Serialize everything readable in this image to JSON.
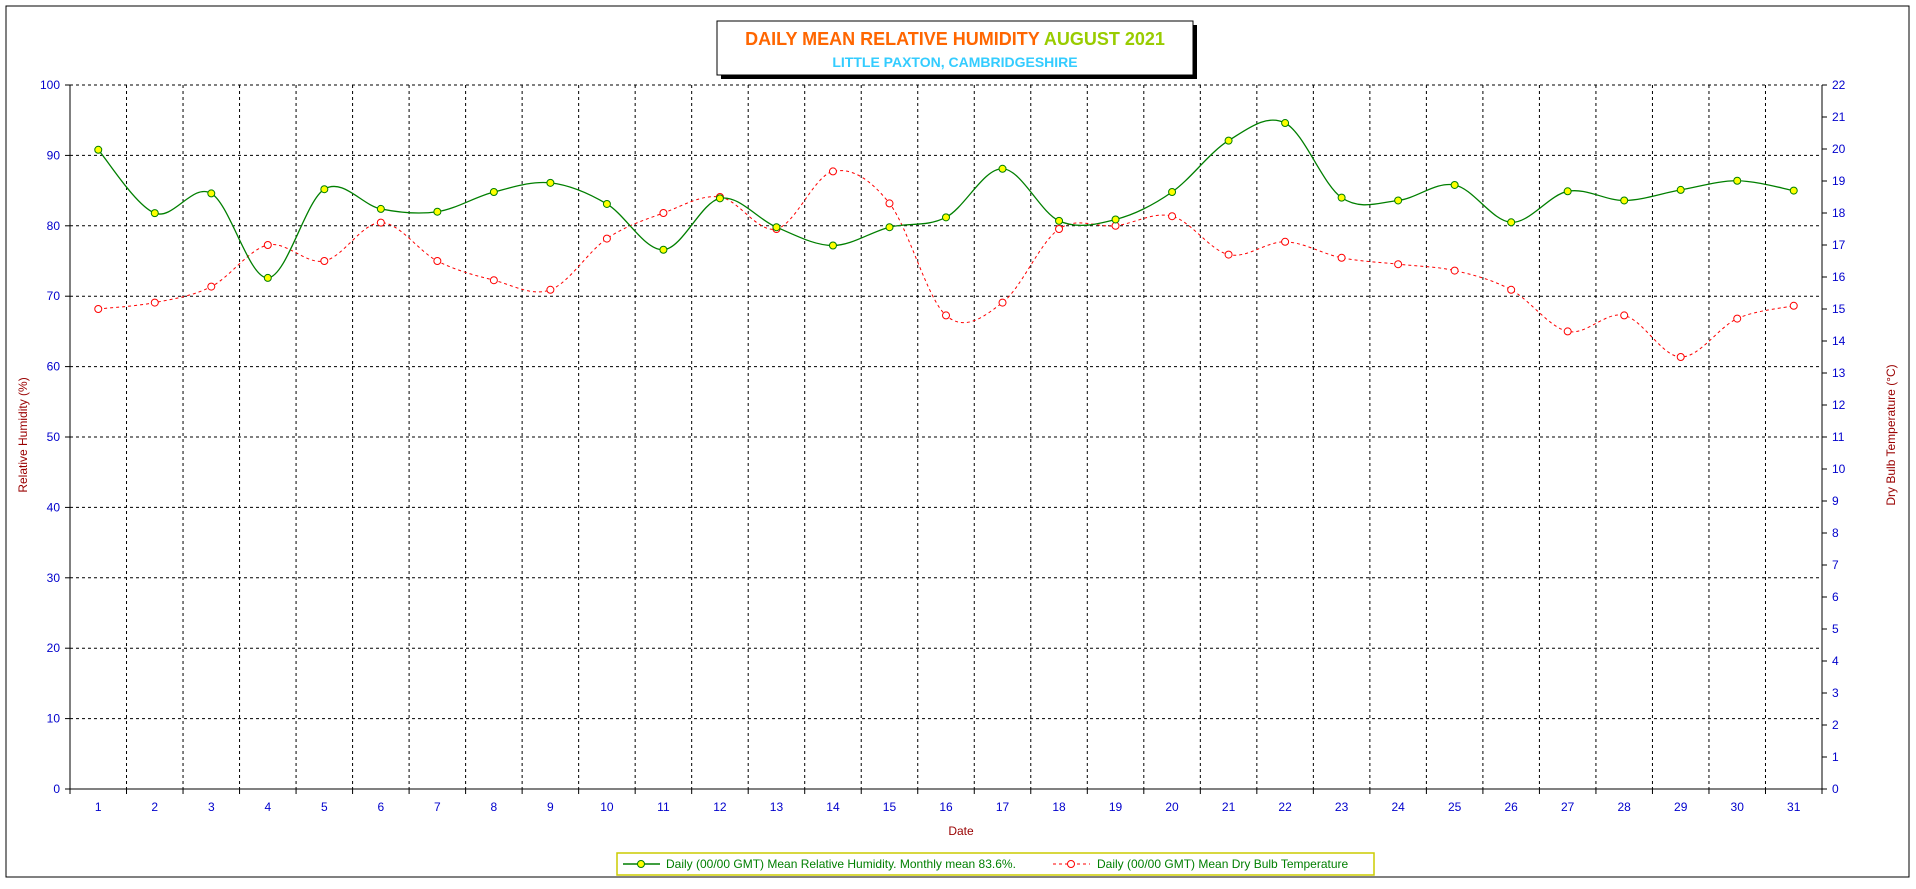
{
  "title": {
    "part1": "DAILY MEAN RELATIVE HUMIDITY",
    "part2": "AUGUST 2021",
    "subtitle": "LITTLE PAXTON, CAMBRIDGESHIRE"
  },
  "colors": {
    "title1": "#ff6600",
    "title2": "#99cc00",
    "subtitle": "#33ccff",
    "tick": "#0000cc",
    "axis_title": "#990000",
    "humidity_line": "#007f00",
    "humidity_marker": "#ffff00",
    "temperature_line": "#ff0000",
    "grid": "#000000"
  },
  "chart_data": {
    "type": "line",
    "title": "DAILY MEAN RELATIVE HUMIDITY AUGUST 2021",
    "subtitle": "LITTLE PAXTON, CAMBRIDGESHIRE",
    "xlabel": "Date",
    "ylabel": "Relative Humidity (%)",
    "y2label": "Dry Bulb Temperature (°C)",
    "x": [
      1,
      2,
      3,
      4,
      5,
      6,
      7,
      8,
      9,
      10,
      11,
      12,
      13,
      14,
      15,
      16,
      17,
      18,
      19,
      20,
      21,
      22,
      23,
      24,
      25,
      26,
      27,
      28,
      29,
      30,
      31
    ],
    "x_ticks": [
      "1",
      "2",
      "3",
      "4",
      "5",
      "6",
      "7",
      "8",
      "9",
      "10",
      "11",
      "12",
      "13",
      "14",
      "15",
      "16",
      "17",
      "18",
      "19",
      "20",
      "21",
      "22",
      "23",
      "24",
      "25",
      "26",
      "27",
      "28",
      "29",
      "30",
      "31"
    ],
    "ylim": [
      0,
      100
    ],
    "y_ticks": [
      "0",
      "10",
      "20",
      "30",
      "40",
      "50",
      "60",
      "70",
      "80",
      "90",
      "100"
    ],
    "y2lim": [
      0,
      22
    ],
    "y2_ticks": [
      "0",
      "1",
      "2",
      "3",
      "4",
      "5",
      "6",
      "7",
      "8",
      "9",
      "10",
      "11",
      "12",
      "13",
      "14",
      "15",
      "16",
      "17",
      "18",
      "19",
      "20",
      "21",
      "22"
    ],
    "grid": true,
    "legend_position": "bottom-center",
    "series": [
      {
        "name": "Daily (00/00 GMT) Mean Relative Humidity. Monthly mean 83.6%.",
        "axis": "left",
        "style": "solid",
        "values": [
          90.8,
          81.8,
          84.6,
          72.6,
          85.2,
          82.4,
          82.0,
          84.8,
          86.1,
          83.1,
          76.6,
          83.9,
          79.8,
          77.2,
          79.8,
          81.2,
          88.1,
          80.7,
          80.9,
          84.8,
          92.1,
          94.6,
          84.0,
          83.6,
          85.8,
          80.5,
          84.9,
          83.6,
          85.1,
          86.4,
          85.0
        ]
      },
      {
        "name": "Daily (00/00 GMT) Mean Dry Bulb Temperature",
        "axis": "right",
        "style": "dashed",
        "values": [
          15.0,
          15.2,
          15.7,
          17.0,
          16.5,
          17.7,
          16.5,
          15.9,
          15.6,
          17.2,
          18.0,
          18.5,
          17.5,
          19.3,
          18.3,
          14.8,
          15.2,
          17.5,
          17.6,
          17.9,
          16.7,
          17.1,
          16.6,
          16.4,
          16.2,
          15.6,
          14.3,
          14.8,
          13.5,
          14.7,
          15.1
        ]
      }
    ]
  }
}
